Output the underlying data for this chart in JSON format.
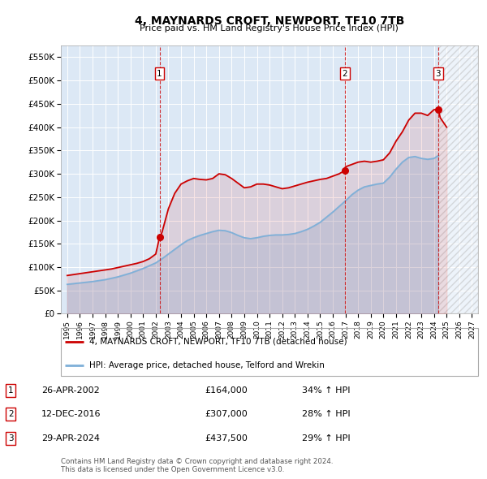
{
  "title": "4, MAYNARDS CROFT, NEWPORT, TF10 7TB",
  "subtitle": "Price paid vs. HM Land Registry's House Price Index (HPI)",
  "ylim": [
    0,
    575000
  ],
  "yticks": [
    0,
    50000,
    100000,
    150000,
    200000,
    250000,
    300000,
    350000,
    400000,
    450000,
    500000,
    550000
  ],
  "ytick_labels": [
    "£0",
    "£50K",
    "£100K",
    "£150K",
    "£200K",
    "£250K",
    "£300K",
    "£350K",
    "£400K",
    "£450K",
    "£500K",
    "£550K"
  ],
  "xlim": [
    1994.5,
    2027.5
  ],
  "xticks": [
    1995,
    1996,
    1997,
    1998,
    1999,
    2000,
    2001,
    2002,
    2003,
    2004,
    2005,
    2006,
    2007,
    2008,
    2009,
    2010,
    2011,
    2012,
    2013,
    2014,
    2015,
    2016,
    2017,
    2018,
    2019,
    2020,
    2021,
    2022,
    2023,
    2024,
    2025,
    2026,
    2027
  ],
  "plot_bg": "#dce8f5",
  "grid_color": "#ffffff",
  "red_color": "#cc0000",
  "blue_color": "#7fb0d8",
  "sale_dates": [
    2002.3,
    2016.95,
    2024.33
  ],
  "sale_prices": [
    164000,
    307000,
    437500
  ],
  "legend_red": "4, MAYNARDS CROFT, NEWPORT, TF10 7TB (detached house)",
  "legend_blue": "HPI: Average price, detached house, Telford and Wrekin",
  "table_entries": [
    {
      "label": "1",
      "date": "26-APR-2002",
      "price": "£164,000",
      "hpi": "34% ↑ HPI"
    },
    {
      "label": "2",
      "date": "12-DEC-2016",
      "price": "£307,000",
      "hpi": "28% ↑ HPI"
    },
    {
      "label": "3",
      "date": "29-APR-2024",
      "price": "£437,500",
      "hpi": "29% ↑ HPI"
    }
  ],
  "footer": "Contains HM Land Registry data © Crown copyright and database right 2024.\nThis data is licensed under the Open Government Licence v3.0.",
  "hpi_x": [
    1995,
    1995.5,
    1996,
    1996.5,
    1997,
    1997.5,
    1998,
    1998.5,
    1999,
    1999.5,
    2000,
    2000.5,
    2001,
    2001.5,
    2002,
    2002.5,
    2003,
    2003.5,
    2004,
    2004.5,
    2005,
    2005.5,
    2006,
    2006.5,
    2007,
    2007.5,
    2008,
    2008.5,
    2009,
    2009.5,
    2010,
    2010.5,
    2011,
    2011.5,
    2012,
    2012.5,
    2013,
    2013.5,
    2014,
    2014.5,
    2015,
    2015.5,
    2016,
    2016.5,
    2017,
    2017.5,
    2018,
    2018.5,
    2019,
    2019.5,
    2020,
    2020.5,
    2021,
    2021.5,
    2022,
    2022.5,
    2023,
    2023.5,
    2024,
    2024.33
  ],
  "hpi_y": [
    63000,
    64500,
    66000,
    67500,
    69000,
    71000,
    73000,
    76000,
    79000,
    83000,
    87000,
    92000,
    97000,
    103000,
    109000,
    118000,
    128000,
    138000,
    148000,
    157000,
    163000,
    168000,
    172000,
    176000,
    179000,
    178000,
    174000,
    168000,
    163000,
    161000,
    163000,
    166000,
    168000,
    169000,
    169000,
    170000,
    172000,
    176000,
    181000,
    188000,
    196000,
    207000,
    218000,
    230000,
    242000,
    255000,
    265000,
    272000,
    275000,
    278000,
    280000,
    293000,
    310000,
    325000,
    335000,
    337000,
    333000,
    331000,
    333000,
    339000
  ],
  "price_x": [
    1995,
    1995.5,
    1996,
    1996.5,
    1997,
    1997.5,
    1998,
    1998.5,
    1999,
    1999.5,
    2000,
    2000.5,
    2001,
    2001.5,
    2002,
    2002.3,
    2002.5,
    2003,
    2003.5,
    2004,
    2004.5,
    2005,
    2005.5,
    2006,
    2006.5,
    2007,
    2007.5,
    2008,
    2008.5,
    2009,
    2009.5,
    2010,
    2010.5,
    2011,
    2011.5,
    2012,
    2012.5,
    2013,
    2013.5,
    2014,
    2014.5,
    2015,
    2015.5,
    2016,
    2016.5,
    2016.95,
    2017,
    2017.5,
    2018,
    2018.5,
    2019,
    2019.5,
    2020,
    2020.5,
    2021,
    2021.5,
    2022,
    2022.5,
    2023,
    2023.5,
    2024,
    2024.33,
    2024.5,
    2025
  ],
  "price_y": [
    82000,
    84000,
    86000,
    88000,
    90000,
    92000,
    94000,
    96000,
    99000,
    102000,
    105000,
    108000,
    112000,
    118000,
    128000,
    164000,
    175000,
    225000,
    258000,
    278000,
    285000,
    290000,
    288000,
    287000,
    290000,
    300000,
    298000,
    290000,
    280000,
    270000,
    272000,
    278000,
    278000,
    276000,
    272000,
    268000,
    270000,
    274000,
    278000,
    282000,
    285000,
    288000,
    290000,
    295000,
    300000,
    307000,
    315000,
    320000,
    325000,
    327000,
    325000,
    327000,
    330000,
    345000,
    370000,
    390000,
    415000,
    430000,
    430000,
    425000,
    437500,
    437500,
    420000,
    400000
  ],
  "hatch_start": 2024.33,
  "hatch_end": 2027.5
}
